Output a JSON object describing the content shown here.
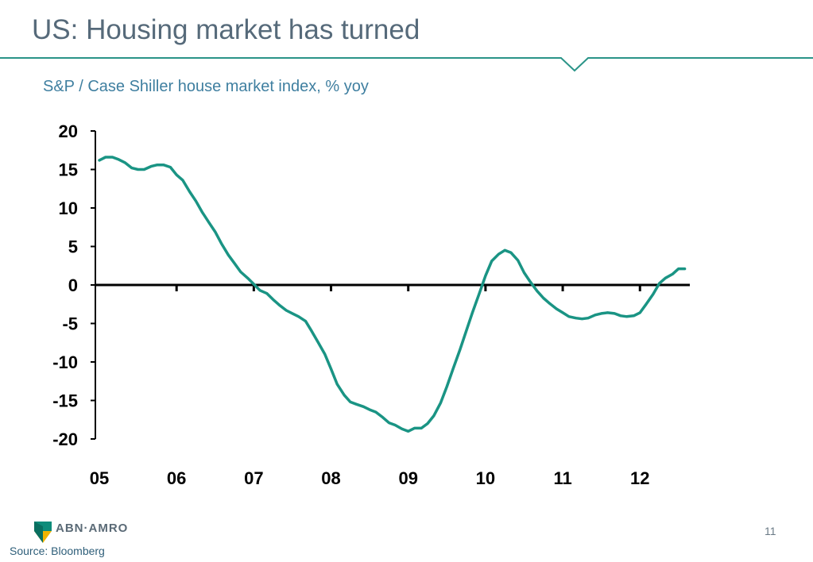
{
  "page": {
    "title": "US: Housing market has turned",
    "subtitle": "S&P / Case Shiller house market index, % yoy",
    "source": "Source: Bloomberg",
    "page_number": "11",
    "logo_text": "ABN·AMRO"
  },
  "colors": {
    "title": "#566a7a",
    "rule": "#2a9488",
    "subtitle": "#3f7fa0",
    "series": "#1a9484",
    "axis": "#000000"
  },
  "chart_data": {
    "type": "line",
    "title": "S&P / Case Shiller house market index, % yoy",
    "xlabel": "",
    "ylabel": "",
    "xlim": [
      2005.0,
      2012.8
    ],
    "ylim": [
      -20,
      20
    ],
    "yticks": [
      20,
      15,
      10,
      5,
      0,
      -5,
      -10,
      -15,
      -20
    ],
    "xticks": [
      {
        "value": 2005,
        "label": "05"
      },
      {
        "value": 2006,
        "label": "06"
      },
      {
        "value": 2007,
        "label": "07"
      },
      {
        "value": 2008,
        "label": "08"
      },
      {
        "value": 2009,
        "label": "09"
      },
      {
        "value": 2010,
        "label": "10"
      },
      {
        "value": 2011,
        "label": "11"
      },
      {
        "value": 2012,
        "label": "12"
      }
    ],
    "grid": false,
    "legend": "none",
    "series": [
      {
        "x": [
          2005.0,
          2005.08,
          2005.17,
          2005.25,
          2005.33,
          2005.42,
          2005.5,
          2005.58,
          2005.67,
          2005.75,
          2005.83,
          2005.92,
          2006.0,
          2006.08,
          2006.17,
          2006.25,
          2006.33,
          2006.42,
          2006.5,
          2006.58,
          2006.67,
          2006.75,
          2006.83,
          2006.92,
          2007.0,
          2007.08,
          2007.17,
          2007.25,
          2007.33,
          2007.42,
          2007.5,
          2007.58,
          2007.67,
          2007.75,
          2007.83,
          2007.92,
          2008.0,
          2008.08,
          2008.17,
          2008.25,
          2008.33,
          2008.42,
          2008.5,
          2008.58,
          2008.67,
          2008.75,
          2008.83,
          2008.92,
          2009.0,
          2009.08,
          2009.17,
          2009.25,
          2009.33,
          2009.42,
          2009.5,
          2009.58,
          2009.67,
          2009.75,
          2009.83,
          2009.92,
          2010.0,
          2010.08,
          2010.17,
          2010.25,
          2010.33,
          2010.42,
          2010.5,
          2010.58,
          2010.67,
          2010.75,
          2010.83,
          2010.92,
          2011.0,
          2011.08,
          2011.17,
          2011.25,
          2011.33,
          2011.42,
          2011.5,
          2011.58,
          2011.67,
          2011.75,
          2011.83,
          2011.92,
          2012.0,
          2012.08,
          2012.17,
          2012.25,
          2012.33,
          2012.42,
          2012.5,
          2012.58
        ],
        "values": [
          16.2,
          16.6,
          16.6,
          16.3,
          15.9,
          15.2,
          15.0,
          15.0,
          15.4,
          15.6,
          15.6,
          15.3,
          14.3,
          13.6,
          12.1,
          10.9,
          9.5,
          8.1,
          6.9,
          5.4,
          3.9,
          2.8,
          1.7,
          0.9,
          0.1,
          -0.7,
          -1.1,
          -1.9,
          -2.6,
          -3.3,
          -3.7,
          -4.1,
          -4.7,
          -6.0,
          -7.4,
          -9.0,
          -10.9,
          -12.9,
          -14.3,
          -15.2,
          -15.5,
          -15.8,
          -16.2,
          -16.5,
          -17.2,
          -17.9,
          -18.2,
          -18.7,
          -19.0,
          -18.6,
          -18.6,
          -18.0,
          -17.0,
          -15.3,
          -13.2,
          -10.9,
          -8.4,
          -6.0,
          -3.6,
          -1.1,
          1.2,
          3.1,
          4.0,
          4.5,
          4.2,
          3.2,
          1.6,
          0.4,
          -0.8,
          -1.7,
          -2.4,
          -3.1,
          -3.6,
          -4.1,
          -4.3,
          -4.4,
          -4.3,
          -3.9,
          -3.7,
          -3.6,
          -3.7,
          -4.0,
          -4.1,
          -4.0,
          -3.6,
          -2.5,
          -1.2,
          0.2,
          0.9,
          1.4,
          2.1,
          2.1
        ]
      }
    ]
  }
}
